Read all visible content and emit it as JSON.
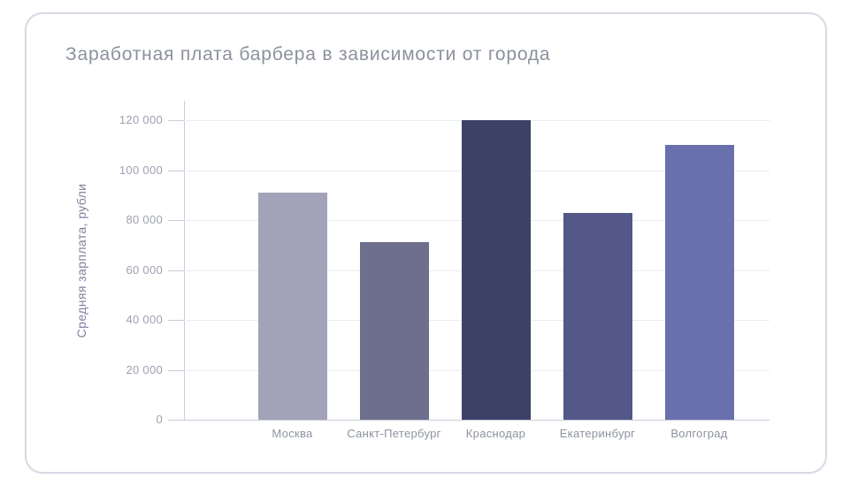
{
  "card": {
    "border_color": "#d6dae4",
    "background": "#ffffff"
  },
  "chart_data": {
    "type": "bar",
    "title": "Заработная плата барбера в зависимости от города",
    "xlabel": "",
    "ylabel": "Средняя зарплата, рубли",
    "categories": [
      "Москва",
      "Санкт-Петербург",
      "Краснодар",
      "Екатеринбург",
      "Волгоград"
    ],
    "values": [
      91000,
      71000,
      120000,
      83000,
      110000
    ],
    "bar_colors": [
      "#a2a3b8",
      "#6e6f8c",
      "#3d4166",
      "#535889",
      "#6a70ad"
    ],
    "ylim": [
      0,
      120000
    ],
    "y_ticks": [
      {
        "value": 0,
        "label": "0"
      },
      {
        "value": 20000,
        "label": "20 000"
      },
      {
        "value": 40000,
        "label": "40 000"
      },
      {
        "value": 60000,
        "label": "60 000"
      },
      {
        "value": 80000,
        "label": "80 000"
      },
      {
        "value": 100000,
        "label": "100 000"
      },
      {
        "value": 120000,
        "label": "120 000"
      }
    ],
    "grid": "horizontal-only",
    "legend": "none",
    "axis_color": "#c9cdd9",
    "gridline_color": "#e9ebf2",
    "title_color": "#8b919d",
    "ylabel_color": "#7e81a1",
    "tick_label_color": "#9da1b0",
    "category_label_color": "#8d92a0"
  }
}
